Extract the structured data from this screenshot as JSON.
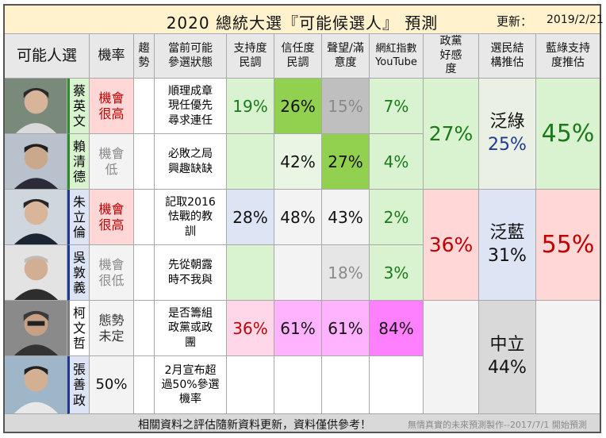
{
  "title": "2020 總統大選『可能候選人』 預測",
  "update_label": "更新：",
  "update_date": "2019/2/21",
  "headers": {
    "candidate": "可能人選",
    "probability": "機率",
    "trend": "趨勢",
    "status": "當前可能參選狀態",
    "support": "支持度民調",
    "trust": "信任度民調",
    "reputation": "聲望/滿意度",
    "internet": "網紅指數YouTube",
    "party_favor": "政黨好感度",
    "voter_structure": "選民結構推估",
    "camp_support": "藍綠支持度推估"
  },
  "candidates": [
    {
      "name": "蔡英文",
      "probability": "機會很高",
      "trend": "",
      "status": "順理成章現任優先尋求連任",
      "support": "19%",
      "trust": "26%",
      "reputation": "15%",
      "internet": "7%"
    },
    {
      "name": "賴清德",
      "probability": "機會低",
      "trend": "",
      "status": "必敗之局興趣缺缺",
      "support": "",
      "trust": "42%",
      "reputation": "27%",
      "internet": "4%"
    },
    {
      "name": "朱立倫",
      "probability": "機會很高",
      "trend": "",
      "status": "記取2016怯戰的教訓",
      "support": "28%",
      "trust": "48%",
      "reputation": "43%",
      "internet": "2%"
    },
    {
      "name": "吳敦義",
      "probability": "機會很低",
      "trend": "",
      "status": "先從朝露時不我與",
      "support": "",
      "trust": "",
      "reputation": "18%",
      "internet": "3%"
    },
    {
      "name": "柯文哲",
      "probability": "態勢未定",
      "trend": "",
      "status": "是否籌組政黨或政團",
      "support": "36%",
      "trust": "61%",
      "reputation": "61%",
      "internet": "84%"
    },
    {
      "name": "張善政",
      "probability": "50%",
      "trend": "",
      "status": "2月宣布超過50%參選機率",
      "support": "",
      "trust": "",
      "reputation": "",
      "internet": ""
    }
  ],
  "groups": [
    {
      "party_favor": "27%",
      "voter_label": "泛綠",
      "voter_pct": "25%",
      "camp_support": "45%"
    },
    {
      "party_favor": "36%",
      "voter_label": "泛藍",
      "voter_pct": "31%",
      "camp_support": "55%"
    },
    {
      "party_favor": "",
      "voter_label": "中立",
      "voter_pct": "44%",
      "camp_support": ""
    }
  ],
  "footer": {
    "note": "相關資料之評估隨新資料更新，資料僅供參考！",
    "credit": "無情真實的未來預測製作--2017/7/1 開始預測"
  },
  "colors": {
    "title_bg": "#fff2cc",
    "header_bg": "#e8e8e8",
    "green_party": "#7030a0",
    "dpp_green": "#2e8b2e",
    "kmt_blue": "#1f3a93",
    "kmt_red": "#c00000",
    "light_green": "#d9f2d0",
    "mid_green": "#92d050",
    "light_pink": "#ffd7d7",
    "magenta": "#ff80ff",
    "gray": "#bfbfbf",
    "pale_blue": "#dde4f4"
  },
  "photos": [
    "portrait-photo",
    "portrait-photo",
    "portrait-photo",
    "portrait-photo",
    "portrait-photo",
    "portrait-photo"
  ]
}
